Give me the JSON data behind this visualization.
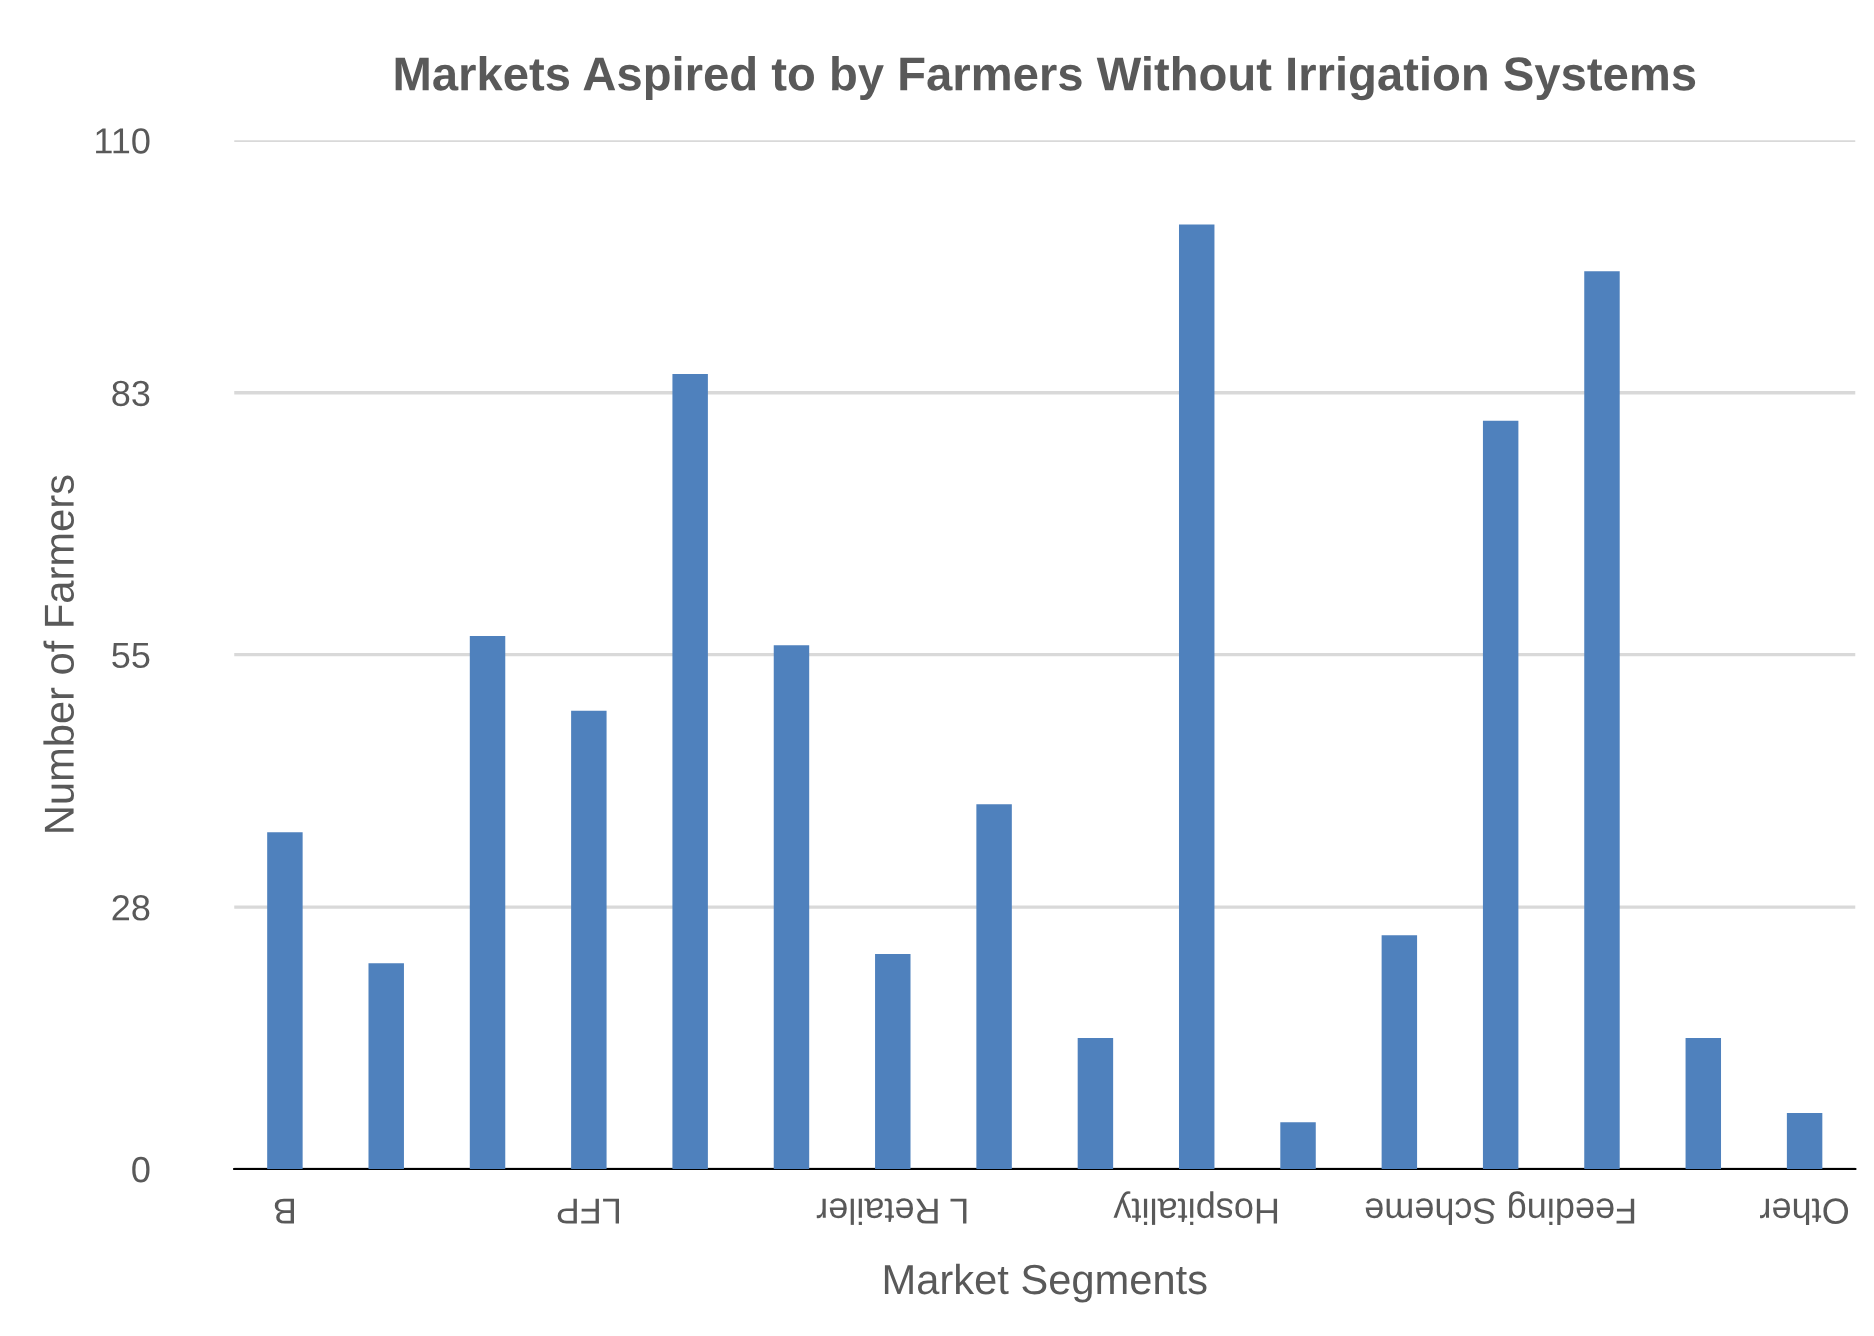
{
  "chart_data": {
    "type": "bar",
    "title": "Markets Aspired to by Farmers Without Irrigation Systems",
    "xlabel": "Market Segments",
    "ylabel": "Number of Farmers",
    "categories": [
      "B",
      null,
      null,
      "LFP",
      null,
      null,
      "L Retailer",
      null,
      null,
      "Hospitality",
      null,
      null,
      "Feeding Scheme",
      null,
      null,
      "Other"
    ],
    "values": [
      36,
      22,
      57,
      49,
      85,
      56,
      23,
      39,
      14,
      101,
      5,
      25,
      80,
      96,
      14,
      6
    ],
    "color": "#4f81bd",
    "ylim": [
      0,
      110
    ],
    "yticks": [
      0,
      28,
      55,
      83,
      110
    ],
    "grid": "y"
  }
}
